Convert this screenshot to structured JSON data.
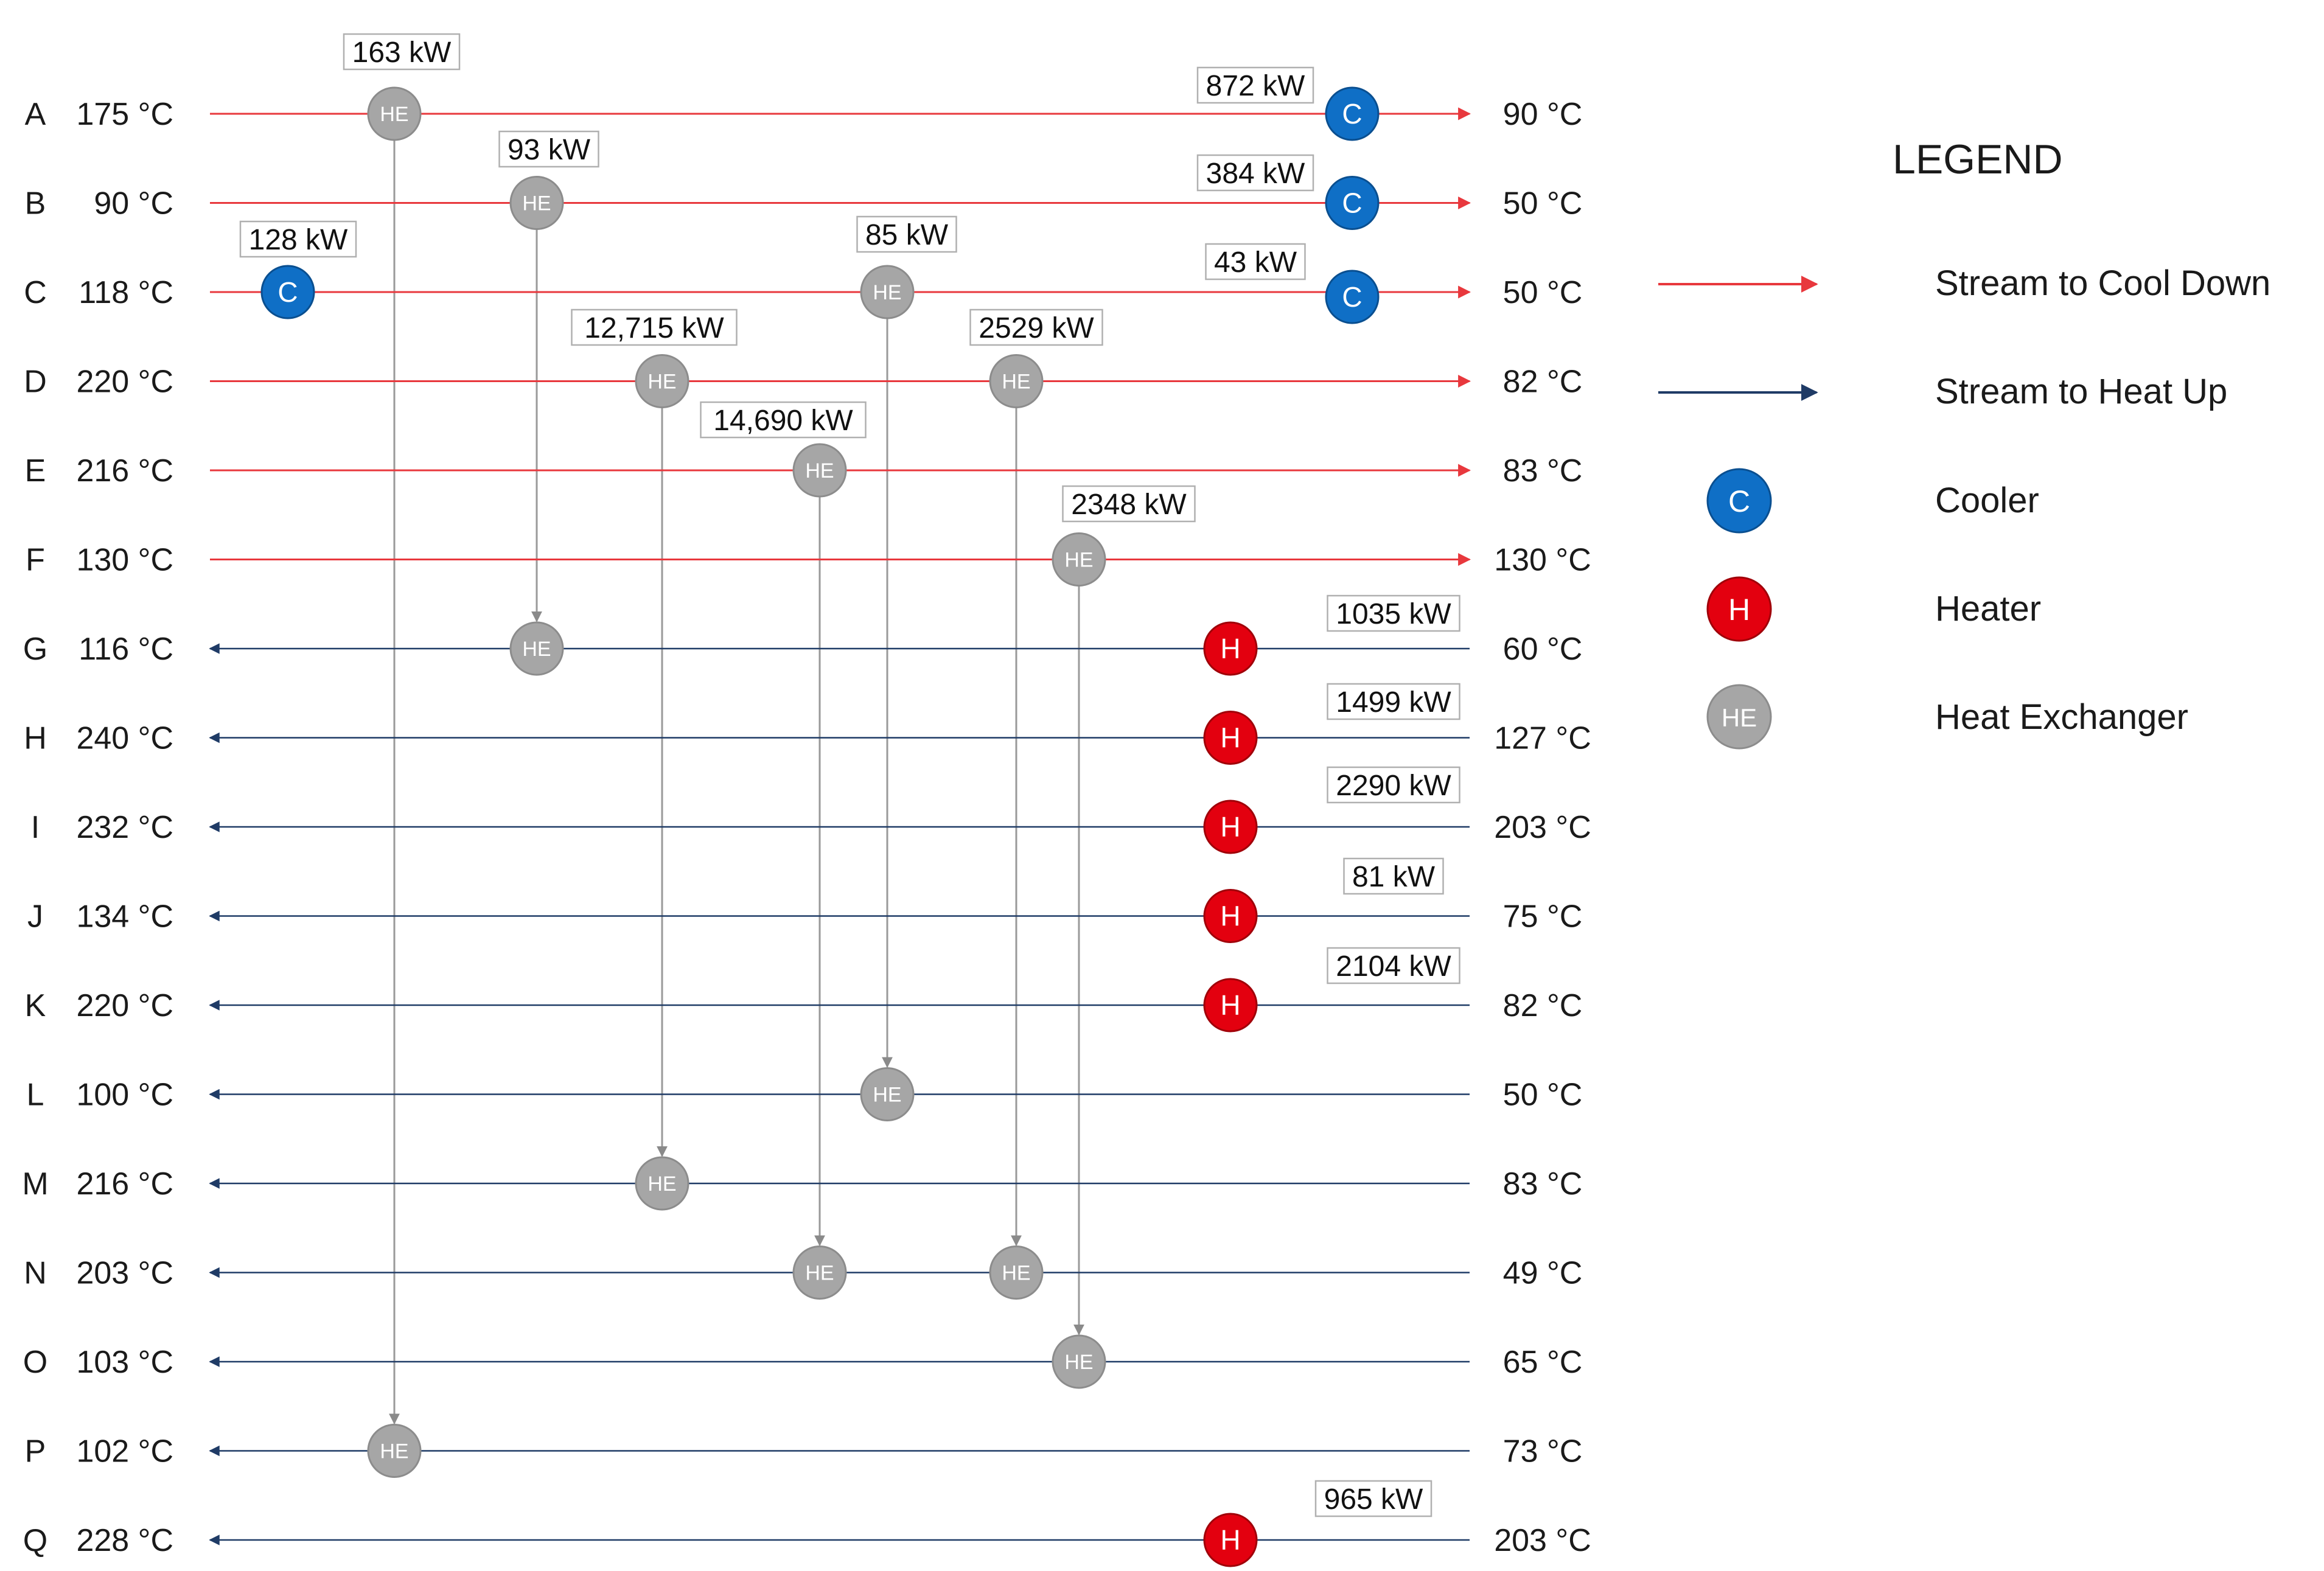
{
  "colors": {
    "cool_stream": "#e8383d",
    "heat_stream": "#1f3b66",
    "cooler": "#0f6fc6",
    "heater": "#e3000f",
    "exchanger": "#a6a6a6",
    "connector": "#9a9a9a"
  },
  "streams": [
    {
      "id": "A",
      "start": "175 °C",
      "end": "90 °C",
      "kind": "cool"
    },
    {
      "id": "B",
      "start": "90 °C",
      "end": "50 °C",
      "kind": "cool"
    },
    {
      "id": "C",
      "start": "118 °C",
      "end": "50 °C",
      "kind": "cool"
    },
    {
      "id": "D",
      "start": "220 °C",
      "end": "82 °C",
      "kind": "cool"
    },
    {
      "id": "E",
      "start": "216 °C",
      "end": "83 °C",
      "kind": "cool"
    },
    {
      "id": "F",
      "start": "130 °C",
      "end": "130 °C",
      "kind": "cool"
    },
    {
      "id": "G",
      "start": "116 °C",
      "end": "60 °C",
      "kind": "heat"
    },
    {
      "id": "H",
      "start": "240 °C",
      "end": "127 °C",
      "kind": "heat"
    },
    {
      "id": "I",
      "start": "232 °C",
      "end": "203 °C",
      "kind": "heat"
    },
    {
      "id": "J",
      "start": "134 °C",
      "end": "75 °C",
      "kind": "heat"
    },
    {
      "id": "K",
      "start": "220 °C",
      "end": "82 °C",
      "kind": "heat"
    },
    {
      "id": "L",
      "start": "100 °C",
      "end": "50 °C",
      "kind": "heat"
    },
    {
      "id": "M",
      "start": "216 °C",
      "end": "83 °C",
      "kind": "heat"
    },
    {
      "id": "N",
      "start": "203 °C",
      "end": "49 °C",
      "kind": "heat"
    },
    {
      "id": "O",
      "start": "103 °C",
      "end": "65 °C",
      "kind": "heat"
    },
    {
      "id": "P",
      "start": "102 °C",
      "end": "73 °C",
      "kind": "heat"
    },
    {
      "id": "Q",
      "start": "228 °C",
      "end": "203 °C",
      "kind": "heat"
    }
  ],
  "exchangers": [
    {
      "from": "A",
      "to": "P",
      "duty": "163 kW"
    },
    {
      "from": "B",
      "to": "G",
      "duty": "93 kW"
    },
    {
      "from": "C",
      "to": "L",
      "duty": "85 kW"
    },
    {
      "from": "D",
      "to": "M",
      "duty": "12,715 kW"
    },
    {
      "from": "D",
      "to": "N",
      "duty": "2529 kW"
    },
    {
      "from": "E",
      "to": "N",
      "duty": "14,690 kW"
    },
    {
      "from": "F",
      "to": "O",
      "duty": "2348 kW"
    }
  ],
  "coolers": [
    {
      "stream": "A",
      "duty": "872 kW"
    },
    {
      "stream": "B",
      "duty": "384 kW"
    },
    {
      "stream": "C",
      "duty": "43 kW"
    },
    {
      "stream": "C",
      "duty": "128 kW"
    }
  ],
  "heaters": [
    {
      "stream": "G",
      "duty": "1035 kW"
    },
    {
      "stream": "H",
      "duty": "1499 kW"
    },
    {
      "stream": "I",
      "duty": "2290 kW"
    },
    {
      "stream": "J",
      "duty": "81 kW"
    },
    {
      "stream": "K",
      "duty": "2104 kW"
    },
    {
      "stream": "Q",
      "duty": "965 kW"
    }
  ],
  "node_letters": {
    "cooler": "C",
    "heater": "H",
    "exchanger": "HE"
  },
  "legend": {
    "title": "LEGEND",
    "cool_stream": "Stream to Cool Down",
    "heat_stream": "Stream to Heat Up",
    "cooler": "Cooler",
    "heater": "Heater",
    "exchanger": "Heat Exchanger"
  }
}
